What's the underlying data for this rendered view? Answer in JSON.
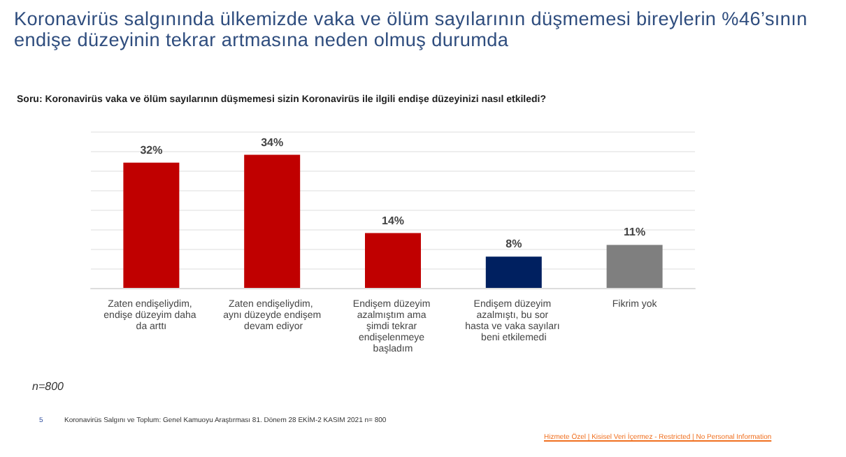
{
  "chart_data": {
    "type": "bar",
    "title": "Koronavirüs salgınında ülkemizde vaka ve ölüm sayılarının düşmemesi bireylerin %46’sının endişe düzeyinin tekrar artmasına neden olmuş durumda",
    "subtitle": "Soru: Koronavirüs vaka ve ölüm sayılarının düşmemesi sizin Koronavirüs ile ilgili  endişe düzeyinizi nasıl etkiledi?",
    "categories": [
      "Zaten endişeliydim, endişe düzeyim daha da arttı",
      "Zaten endişeliydim, aynı düzeyde endişem devam ediyor",
      "Endişem düzeyim azalmıştım ama şimdi tekrar endişelenmeye başladım",
      "Endişem düzeyim azalmıştı, bu sor hasta ve vaka sayıları beni etkilemedi",
      "Fikrim yok"
    ],
    "values": [
      32,
      34,
      14,
      8,
      11
    ],
    "colors": [
      "#c00000",
      "#c00000",
      "#c00000",
      "#002060",
      "#7f7f7f"
    ],
    "value_labels": [
      "32%",
      "34%",
      "14%",
      "8%",
      "11%"
    ],
    "ylim": [
      0,
      40
    ],
    "yticks": [
      {
        "value": 0,
        "label": null
      },
      {
        "value": 5,
        "label": null
      },
      {
        "value": 10,
        "label": null
      },
      {
        "value": 15,
        "label": null
      },
      {
        "value": 20,
        "label": null
      },
      {
        "value": 25,
        "label": null
      },
      {
        "value": 30,
        "label": null
      },
      {
        "value": 35,
        "label": null
      },
      {
        "value": 40,
        "label": null
      }
    ],
    "tick_labels": "x",
    "grid": "y",
    "annotations": [
      "n=800",
      "5",
      "Koronavirüs  Salgını ve Toplum:  Genel Kamuoyu Araştırması 81. Dönem  28 EKİM-2 KASIM  2021   n= 800",
      "Hizmete Özel | Kisisel Veri İçermez - Restricted | No Personal Information"
    ]
  }
}
